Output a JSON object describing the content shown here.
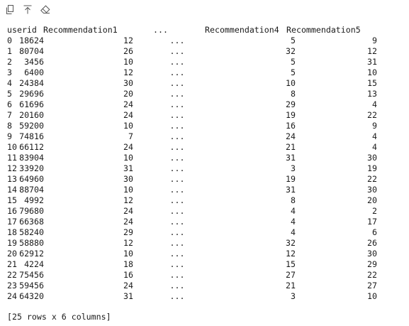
{
  "toolbar": {
    "copy_icon": "copy-icon",
    "pin_icon": "pin-to-top-icon",
    "clear_icon": "eraser-icon"
  },
  "table": {
    "headers": {
      "userid": "userid",
      "rec1": "Recommendation1",
      "ellipsis": "...",
      "rec4": "Recommendation4",
      "rec5": "Recommendation5"
    },
    "rows": [
      {
        "idx": "0",
        "userid": "18624",
        "rec1": "12",
        "ell": "...",
        "rec4": "5",
        "rec5": "9"
      },
      {
        "idx": "1",
        "userid": "80704",
        "rec1": "26",
        "ell": "...",
        "rec4": "32",
        "rec5": "12"
      },
      {
        "idx": "2",
        "userid": "3456",
        "rec1": "10",
        "ell": "...",
        "rec4": "5",
        "rec5": "31"
      },
      {
        "idx": "3",
        "userid": "6400",
        "rec1": "12",
        "ell": "...",
        "rec4": "5",
        "rec5": "10"
      },
      {
        "idx": "4",
        "userid": "24384",
        "rec1": "30",
        "ell": "...",
        "rec4": "10",
        "rec5": "15"
      },
      {
        "idx": "5",
        "userid": "29696",
        "rec1": "20",
        "ell": "...",
        "rec4": "8",
        "rec5": "13"
      },
      {
        "idx": "6",
        "userid": "61696",
        "rec1": "24",
        "ell": "...",
        "rec4": "29",
        "rec5": "4"
      },
      {
        "idx": "7",
        "userid": "20160",
        "rec1": "24",
        "ell": "...",
        "rec4": "19",
        "rec5": "22"
      },
      {
        "idx": "8",
        "userid": "59200",
        "rec1": "10",
        "ell": "...",
        "rec4": "16",
        "rec5": "9"
      },
      {
        "idx": "9",
        "userid": "74816",
        "rec1": "7",
        "ell": "...",
        "rec4": "24",
        "rec5": "4"
      },
      {
        "idx": "10",
        "userid": "66112",
        "rec1": "24",
        "ell": "...",
        "rec4": "21",
        "rec5": "4"
      },
      {
        "idx": "11",
        "userid": "83904",
        "rec1": "10",
        "ell": "...",
        "rec4": "31",
        "rec5": "30"
      },
      {
        "idx": "12",
        "userid": "33920",
        "rec1": "31",
        "ell": "...",
        "rec4": "3",
        "rec5": "19"
      },
      {
        "idx": "13",
        "userid": "64960",
        "rec1": "30",
        "ell": "...",
        "rec4": "19",
        "rec5": "22"
      },
      {
        "idx": "14",
        "userid": "88704",
        "rec1": "10",
        "ell": "...",
        "rec4": "31",
        "rec5": "30"
      },
      {
        "idx": "15",
        "userid": "4992",
        "rec1": "12",
        "ell": "...",
        "rec4": "8",
        "rec5": "20"
      },
      {
        "idx": "16",
        "userid": "79680",
        "rec1": "24",
        "ell": "...",
        "rec4": "4",
        "rec5": "2"
      },
      {
        "idx": "17",
        "userid": "66368",
        "rec1": "24",
        "ell": "...",
        "rec4": "4",
        "rec5": "17"
      },
      {
        "idx": "18",
        "userid": "58240",
        "rec1": "29",
        "ell": "...",
        "rec4": "4",
        "rec5": "6"
      },
      {
        "idx": "19",
        "userid": "58880",
        "rec1": "12",
        "ell": "...",
        "rec4": "32",
        "rec5": "26"
      },
      {
        "idx": "20",
        "userid": "62912",
        "rec1": "10",
        "ell": "...",
        "rec4": "12",
        "rec5": "30"
      },
      {
        "idx": "21",
        "userid": "4224",
        "rec1": "18",
        "ell": "...",
        "rec4": "15",
        "rec5": "29"
      },
      {
        "idx": "22",
        "userid": "75456",
        "rec1": "16",
        "ell": "...",
        "rec4": "27",
        "rec5": "22"
      },
      {
        "idx": "23",
        "userid": "59456",
        "rec1": "24",
        "ell": "...",
        "rec4": "21",
        "rec5": "27"
      },
      {
        "idx": "24",
        "userid": "64320",
        "rec1": "31",
        "ell": "...",
        "rec4": "3",
        "rec5": "10"
      }
    ]
  },
  "footer": {
    "summary": "[25 rows x 6 columns]"
  }
}
